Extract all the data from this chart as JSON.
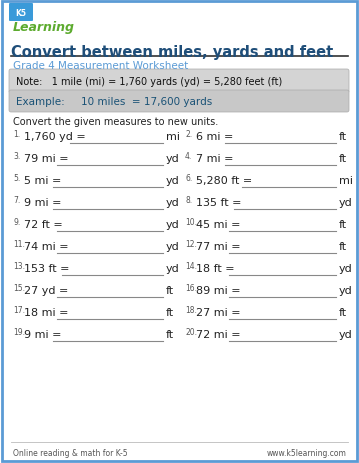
{
  "border_color": "#5b9bd5",
  "bg_color": "#ffffff",
  "title": "Convert between miles, yards and feet",
  "title_color": "#1f4e79",
  "subtitle": "Grade 4 Measurement Worksheet",
  "subtitle_color": "#5b9bd5",
  "note_text": "Note:   1 mile (mi) = 1,760 yards (yd) = 5,280 feet (ft)",
  "example_text": "Example:     10 miles  = 17,600 yards",
  "instruction": "Convert the given measures to new units.",
  "problems": [
    {
      "num": "1.",
      "left": "1,760 yd =",
      "unit": "mi"
    },
    {
      "num": "2.",
      "left": "6 mi =",
      "unit": "ft"
    },
    {
      "num": "3.",
      "left": "79 mi =",
      "unit": "yd"
    },
    {
      "num": "4.",
      "left": "7 mi =",
      "unit": "ft"
    },
    {
      "num": "5.",
      "left": "5 mi =",
      "unit": "yd"
    },
    {
      "num": "6.",
      "left": "5,280 ft =",
      "unit": "mi"
    },
    {
      "num": "7.",
      "left": "9 mi =",
      "unit": "yd"
    },
    {
      "num": "8.",
      "left": "135 ft =",
      "unit": "yd"
    },
    {
      "num": "9.",
      "left": "72 ft =",
      "unit": "yd"
    },
    {
      "num": "10.",
      "left": "45 mi =",
      "unit": "ft"
    },
    {
      "num": "11.",
      "left": "74 mi =",
      "unit": "yd"
    },
    {
      "num": "12.",
      "left": "77 mi =",
      "unit": "ft"
    },
    {
      "num": "13.",
      "left": "153 ft =",
      "unit": "yd"
    },
    {
      "num": "14.",
      "left": "18 ft =",
      "unit": "yd"
    },
    {
      "num": "15.",
      "left": "27 yd =",
      "unit": "ft"
    },
    {
      "num": "16.",
      "left": "89 mi =",
      "unit": "yd"
    },
    {
      "num": "17.",
      "left": "18 mi =",
      "unit": "ft"
    },
    {
      "num": "18.",
      "left": "27 mi =",
      "unit": "ft"
    },
    {
      "num": "19.",
      "left": "9 mi =",
      "unit": "ft"
    },
    {
      "num": "20.",
      "left": "72 mi =",
      "unit": "yd"
    }
  ],
  "footer_left": "Online reading & math for K-5",
  "footer_right": "www.k5learning.com",
  "note_bg": "#d4d4d4",
  "example_bg": "#c8c8c8",
  "line_color": "#888888",
  "text_color": "#222222",
  "num_color": "#555555"
}
